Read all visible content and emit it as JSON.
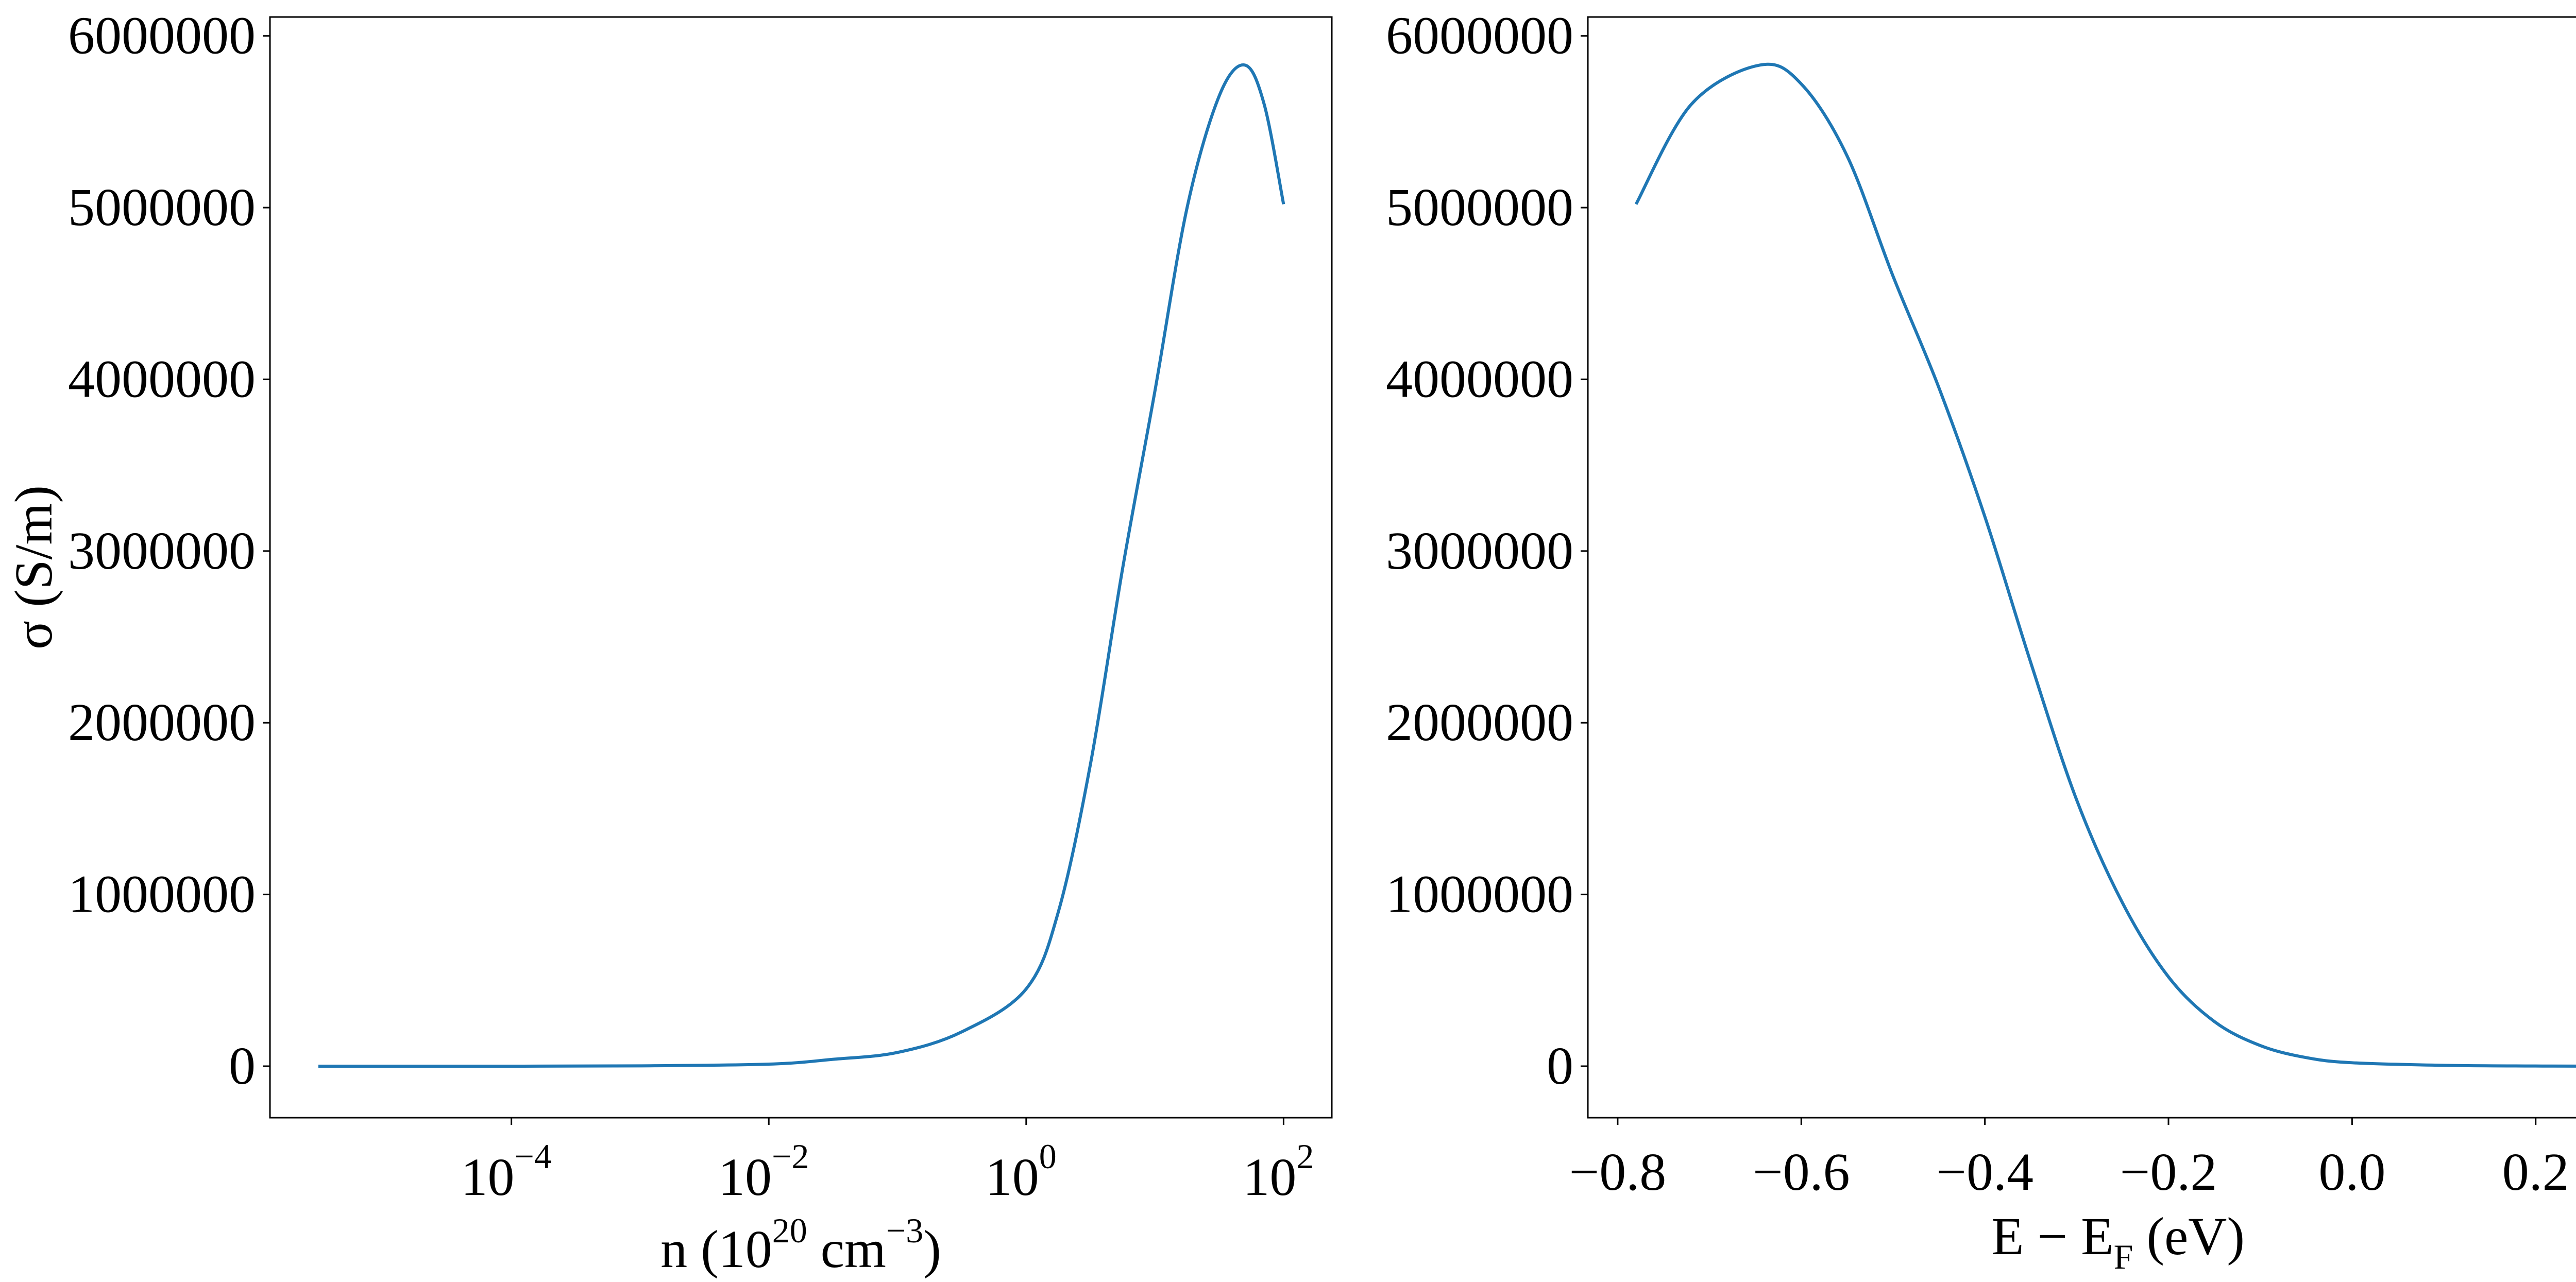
{
  "chart_data": [
    {
      "type": "line",
      "xscale": "log",
      "xlabel": "n (10^20 cm^-3)",
      "xlabel_parts": {
        "main": "n (10",
        "sup1": "20",
        "mid": " cm",
        "sup2": "−3",
        "end": ")"
      },
      "ylabel": "σ (S/m)",
      "xlim": [
        1.33e-06,
        237
      ],
      "ylim": [
        -300000,
        6110000
      ],
      "xticks": [
        {
          "value": 0.0001,
          "base": "10",
          "exp": "−4"
        },
        {
          "value": 0.01,
          "base": "10",
          "exp": "−2"
        },
        {
          "value": 1,
          "base": "10",
          "exp": "0"
        },
        {
          "value": 100,
          "base": "10",
          "exp": "2"
        }
      ],
      "yticks": [
        0,
        1000000,
        2000000,
        3000000,
        4000000,
        5000000,
        6000000
      ],
      "ytick_labels": [
        "0",
        "1000000",
        "2000000",
        "3000000",
        "4000000",
        "5000000",
        "6000000"
      ],
      "grid": false,
      "color": "#1f77b4",
      "x": [
        3.16e-06,
        1e-05,
        0.0001,
        0.001,
        0.01,
        0.0316,
        0.1,
        0.316,
        1,
        1.78,
        3.16,
        5.62,
        10,
        17.8,
        31.6,
        50,
        70.8,
        100
      ],
      "y": [
        0,
        0,
        0,
        2000,
        12000,
        40000,
        80000,
        200000,
        450000,
        900000,
        1760000,
        2900000,
        3930000,
        5000000,
        5650000,
        5830000,
        5600000,
        5020000
      ]
    },
    {
      "type": "line",
      "xlabel": "E − E_F (eV)",
      "xlabel_parts": {
        "main": "E − E",
        "sub": "F",
        "end": " (eV)"
      },
      "ylabel": "",
      "xlim": [
        -0.8325,
        0.3225
      ],
      "ylim": [
        -300000,
        6110000
      ],
      "xticks": [
        -0.8,
        -0.6,
        -0.4,
        -0.2,
        0.0,
        0.2
      ],
      "xtick_labels": [
        "−0.8",
        "−0.6",
        "−0.4",
        "−0.2",
        "0.0",
        "0.2"
      ],
      "yticks": [
        0,
        1000000,
        2000000,
        3000000,
        4000000,
        5000000,
        6000000
      ],
      "ytick_labels": [
        "0",
        "1000000",
        "2000000",
        "3000000",
        "4000000",
        "5000000",
        "6000000"
      ],
      "grid": false,
      "color": "#1f77b4",
      "x": [
        -0.78,
        -0.72,
        -0.645,
        -0.6,
        -0.55,
        -0.5,
        -0.45,
        -0.4,
        -0.35,
        -0.3,
        -0.25,
        -0.2,
        -0.15,
        -0.1,
        -0.05,
        0.0,
        0.1,
        0.2,
        0.27
      ],
      "y": [
        5020000,
        5600000,
        5830000,
        5720000,
        5300000,
        4600000,
        3950000,
        3200000,
        2350000,
        1550000,
        950000,
        520000,
        260000,
        120000,
        50000,
        20000,
        5000,
        1000,
        0
      ]
    }
  ]
}
